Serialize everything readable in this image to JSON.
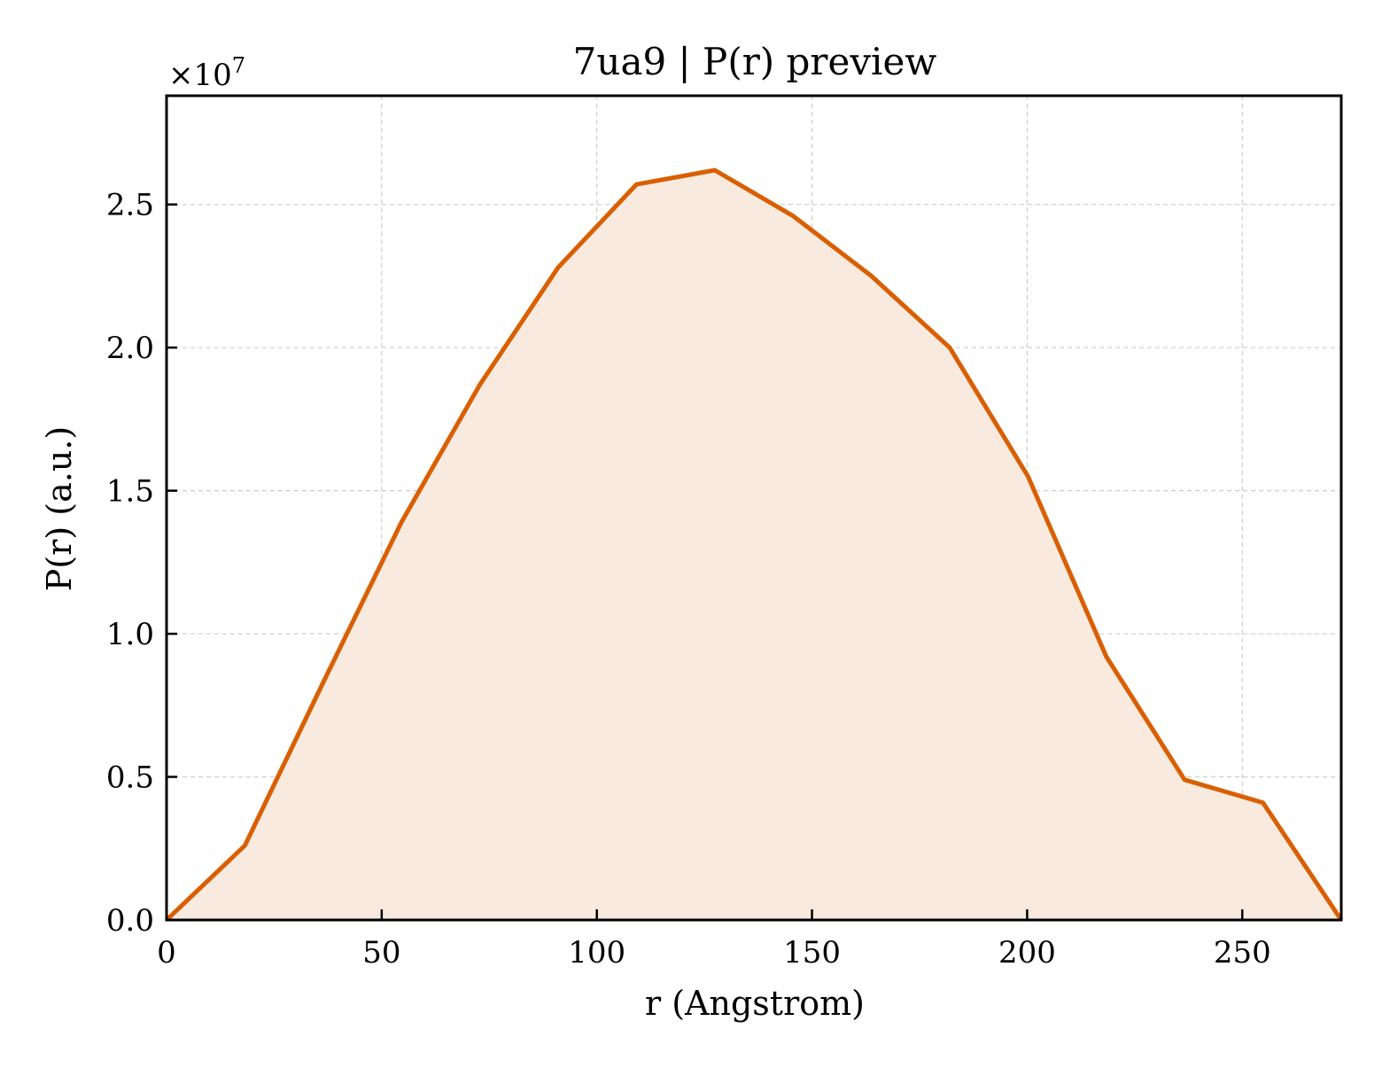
{
  "chart_data": {
    "type": "area",
    "title": "7ua9 | P(r) preview",
    "xlabel": "r (Angstrom)",
    "ylabel": "P(r) (a.u.)",
    "y_offset_label": "×10",
    "y_offset_exponent": "7",
    "xlim": [
      0,
      273
    ],
    "ylim": [
      0,
      2.88
    ],
    "x_ticks": [
      0,
      50,
      100,
      150,
      200,
      250
    ],
    "x_tick_labels": [
      "0",
      "50",
      "100",
      "150",
      "200",
      "250"
    ],
    "y_ticks": [
      0,
      0.5,
      1.0,
      1.5,
      2.0,
      2.5
    ],
    "y_tick_labels": [
      "0.0",
      "0.5",
      "1.0",
      "1.5",
      "2.0",
      "2.5"
    ],
    "grid": true,
    "line_color": "#d95f02",
    "fill_color": "#f8eadf",
    "series": [
      {
        "x": [
          0,
          18.2,
          36.4,
          54.6,
          72.8,
          91.0,
          109.2,
          127.4,
          145.6,
          163.8,
          182.0,
          200.2,
          218.4,
          236.6,
          254.8,
          273.0
        ],
        "y": [
          0.0,
          0.26,
          0.83,
          1.39,
          1.87,
          2.28,
          2.57,
          2.62,
          2.46,
          2.25,
          2.0,
          1.55,
          0.92,
          0.49,
          0.41,
          0.0
        ]
      }
    ]
  }
}
